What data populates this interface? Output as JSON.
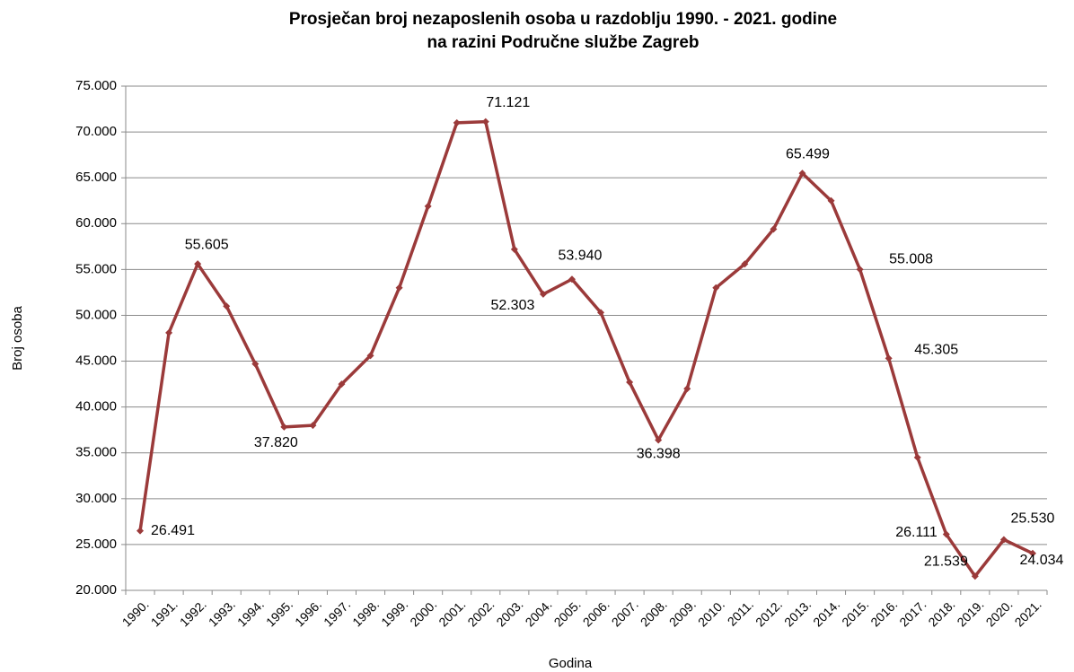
{
  "chart_data": {
    "type": "line",
    "title": [
      "Prosječan  broj nezaposlenih  osoba u razdoblju 1990. - 2021. godine",
      "na razini Područne  službe Zagreb"
    ],
    "x_label": "Godina",
    "y_label": "Broj osoba",
    "categories": [
      "1990.",
      "1991.",
      "1992.",
      "1993.",
      "1994.",
      "1995.",
      "1996.",
      "1997.",
      "1998.",
      "1999.",
      "2000.",
      "2001.",
      "2002.",
      "2003.",
      "2004.",
      "2005.",
      "2006.",
      "2007.",
      "2008.",
      "2009.",
      "2010.",
      "2011.",
      "2012.",
      "2013.",
      "2014.",
      "2015.",
      "2016.",
      "2017.",
      "2018.",
      "2019.",
      "2020.",
      "2021."
    ],
    "series": [
      {
        "name": "Broj osoba",
        "color": "#9b3a3a",
        "values": [
          26491,
          48100,
          55605,
          51000,
          44700,
          37820,
          38000,
          42500,
          45600,
          53000,
          61900,
          71000,
          71121,
          57200,
          52303,
          53940,
          50300,
          42700,
          36398,
          42000,
          53000,
          55600,
          59400,
          65499,
          62500,
          55008,
          45305,
          34500,
          26111,
          21539,
          25530,
          24034
        ],
        "value_labels": [
          "26.491",
          null,
          "55.605",
          null,
          null,
          "37.820",
          null,
          null,
          null,
          null,
          null,
          null,
          "71.121",
          null,
          "52.303",
          "53.940",
          null,
          null,
          "36.398",
          null,
          null,
          null,
          null,
          "65.499",
          null,
          "55.008",
          "45.305",
          null,
          "26.111",
          "21.539",
          "25.530",
          "24.034"
        ]
      }
    ],
    "ylim": [
      20000,
      75000
    ],
    "yticks": [
      {
        "value": 20000,
        "label": "20.000"
      },
      {
        "value": 25000,
        "label": "25.000"
      },
      {
        "value": 30000,
        "label": "30.000"
      },
      {
        "value": 35000,
        "label": "35.000"
      },
      {
        "value": 40000,
        "label": "40.000"
      },
      {
        "value": 45000,
        "label": "45.000"
      },
      {
        "value": 50000,
        "label": "50.000"
      },
      {
        "value": 55000,
        "label": "55.000"
      },
      {
        "value": 60000,
        "label": "60.000"
      },
      {
        "value": 65000,
        "label": "65.000"
      },
      {
        "value": 70000,
        "label": "70.000"
      },
      {
        "value": 75000,
        "label": "75.000"
      }
    ],
    "grid": true
  }
}
